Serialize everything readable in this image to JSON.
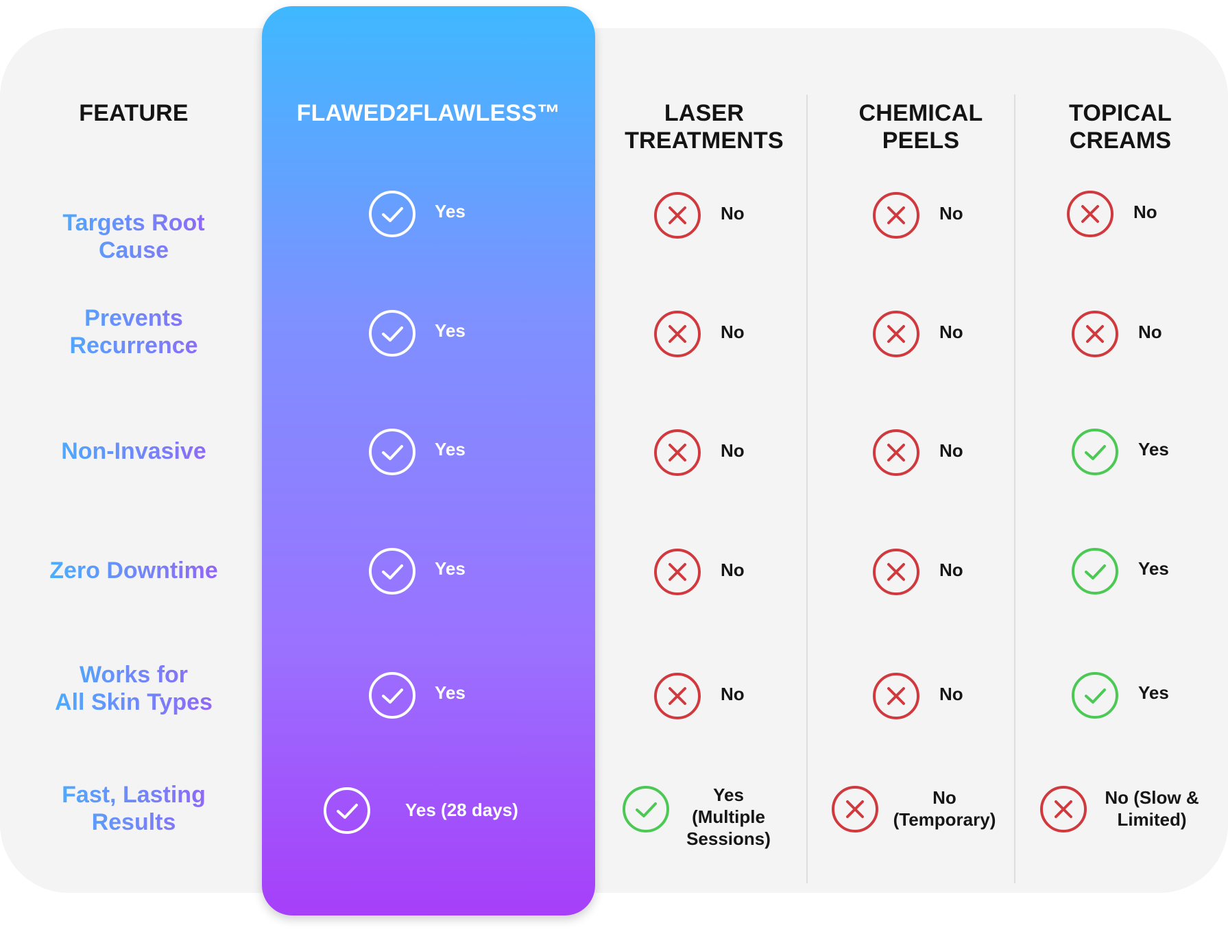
{
  "headers": {
    "feature": "FEATURE",
    "highlight": "FLAWED2FLAWLESS™",
    "laser_line1": "LASER",
    "laser_line2": "TREATMENTS",
    "peels_line1": "CHEMICAL",
    "peels_line2": "PEELS",
    "creams_line1": "TOPICAL",
    "creams_line2": "CREAMS"
  },
  "colors": {
    "highlight_top": "#3fb8ff",
    "highlight_bottom": "#a63ff9",
    "yes_icon": "#4cc955",
    "no_icon": "#d03a3f",
    "card_bg": "#f4f4f4"
  },
  "features": [
    {
      "line1": "Targets Root",
      "line2": "Cause"
    },
    {
      "line1": "Prevents",
      "line2": "Recurrence"
    },
    {
      "line1": "Non-Invasive"
    },
    {
      "line1": "Zero Downtime"
    },
    {
      "line1": "Works for",
      "line2": "All Skin Types"
    },
    {
      "line1": "Fast, Lasting",
      "line2": "Results"
    }
  ],
  "flawed2flawless": [
    {
      "icon": "check-circle-icon",
      "text": "Yes"
    },
    {
      "icon": "check-circle-icon",
      "text": "Yes"
    },
    {
      "icon": "check-circle-icon",
      "text": "Yes"
    },
    {
      "icon": "check-circle-icon",
      "text": "Yes"
    },
    {
      "icon": "check-circle-icon",
      "text": "Yes"
    },
    {
      "icon": "check-circle-icon",
      "text": "Yes (28 days)"
    }
  ],
  "laser": [
    {
      "icon": "x-circle-icon",
      "text": "No"
    },
    {
      "icon": "x-circle-icon",
      "text": "No"
    },
    {
      "icon": "x-circle-icon",
      "text": "No"
    },
    {
      "icon": "x-circle-icon",
      "text": "No"
    },
    {
      "icon": "x-circle-icon",
      "text": "No"
    },
    {
      "icon": "check-circle-icon",
      "line1": "Yes",
      "line2": "(Multiple",
      "line3": "Sessions)"
    }
  ],
  "peels": [
    {
      "icon": "x-circle-icon",
      "text": "No"
    },
    {
      "icon": "x-circle-icon",
      "text": "No"
    },
    {
      "icon": "x-circle-icon",
      "text": "No"
    },
    {
      "icon": "x-circle-icon",
      "text": "No"
    },
    {
      "icon": "x-circle-icon",
      "text": "No"
    },
    {
      "icon": "x-circle-icon",
      "line1": "No",
      "line2": "(Temporary)"
    }
  ],
  "creams": [
    {
      "icon": "x-circle-icon",
      "text": "No"
    },
    {
      "icon": "x-circle-icon",
      "text": "No"
    },
    {
      "icon": "check-circle-icon",
      "text": "Yes"
    },
    {
      "icon": "check-circle-icon",
      "text": "Yes"
    },
    {
      "icon": "check-circle-icon",
      "text": "Yes"
    },
    {
      "icon": "x-circle-icon",
      "line1": "No (Slow &",
      "line2": "Limited)"
    }
  ]
}
